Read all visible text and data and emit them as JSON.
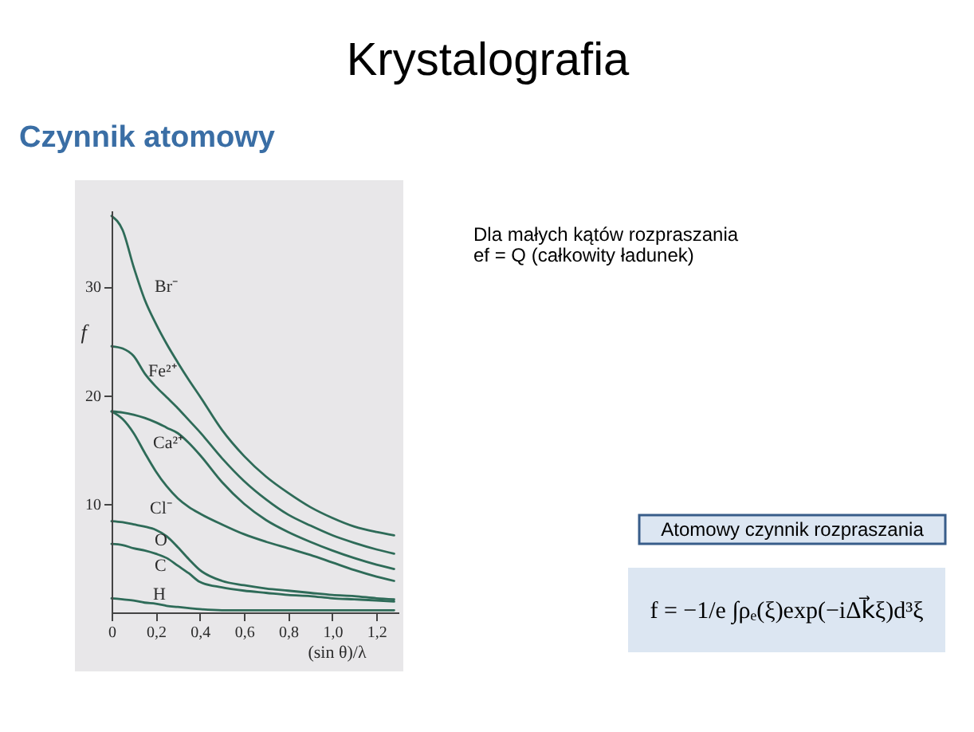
{
  "chart_data": {
    "type": "line",
    "title": "Krystalografia",
    "subtitle": "Czynnik atomowy",
    "xlabel": "(sin θ)/λ",
    "ylabel": "f",
    "x": [
      0,
      0.05,
      0.1,
      0.15,
      0.2,
      0.25,
      0.3,
      0.35,
      0.4,
      0.5,
      0.6,
      0.7,
      0.8,
      0.9,
      1.0,
      1.1,
      1.2,
      1.28
    ],
    "series": [
      {
        "name": "Br⁻",
        "color": "#2e6b58",
        "values": [
          36.5,
          35.2,
          31.8,
          28.8,
          26.6,
          24.7,
          23.0,
          21.4,
          19.9,
          16.8,
          14.4,
          12.5,
          11.0,
          9.7,
          8.7,
          7.9,
          7.4,
          7.1
        ]
      },
      {
        "name": "Fe²⁺",
        "color": "#2e6b58",
        "values": [
          24.5,
          24.3,
          23.6,
          22.0,
          20.8,
          19.8,
          18.8,
          17.7,
          16.6,
          14.2,
          12.1,
          10.4,
          9.0,
          8.0,
          7.1,
          6.4,
          5.8,
          5.4
        ]
      },
      {
        "name": "Ca²⁺",
        "color": "#2e6b58",
        "values": [
          18.5,
          18.4,
          18.2,
          17.9,
          17.5,
          17.0,
          16.5,
          15.6,
          14.5,
          12.0,
          10.0,
          8.5,
          7.4,
          6.5,
          5.7,
          5.0,
          4.4,
          4.0
        ]
      },
      {
        "name": "Cl⁻",
        "color": "#2e6b58",
        "values": [
          18.5,
          17.8,
          16.5,
          14.7,
          13.0,
          11.6,
          10.5,
          9.7,
          9.1,
          8.1,
          7.2,
          6.5,
          5.9,
          5.3,
          4.6,
          3.9,
          3.3,
          2.9
        ]
      },
      {
        "name": "O",
        "color": "#2e6b58",
        "values": [
          8.4,
          8.3,
          8.1,
          7.9,
          7.6,
          7.0,
          6.0,
          4.9,
          3.9,
          2.9,
          2.5,
          2.2,
          2.0,
          1.8,
          1.6,
          1.5,
          1.3,
          1.2
        ]
      },
      {
        "name": "C",
        "color": "#2e6b58",
        "values": [
          6.3,
          6.2,
          5.9,
          5.7,
          5.4,
          5.0,
          4.3,
          3.6,
          2.8,
          2.3,
          2.0,
          1.8,
          1.6,
          1.5,
          1.3,
          1.2,
          1.1,
          1.0
        ]
      },
      {
        "name": "H",
        "color": "#2e6b58",
        "values": [
          1.3,
          1.2,
          1.1,
          0.9,
          0.8,
          0.6,
          0.5,
          0.4,
          0.3,
          0.2,
          0.2,
          0.2,
          0.2,
          0.2,
          0.2,
          0.2,
          0.2,
          0.2
        ]
      }
    ],
    "xlim": [
      0,
      1.3
    ],
    "ylim": [
      0,
      37
    ],
    "xticks": [
      0,
      {
        "value": 0.2,
        "label": "0,2"
      },
      {
        "value": 0.4,
        "label": "0,4"
      },
      {
        "value": 0.6,
        "label": "0,6"
      },
      {
        "value": 0.8,
        "label": "0,8"
      },
      {
        "value": 1.0,
        "label": "1,0"
      },
      {
        "value": 1.2,
        "label": "1,2"
      }
    ],
    "yticks": [
      10,
      20,
      30
    ],
    "grid": false,
    "annotations": [
      "Dla małych kątów rozpraszania",
      "ef = Q (całkowity ładunek)",
      "Atomowy czynnik rozpraszania",
      "f = −1/e ∫ρₑ(ξ)exp(−iΔk⃗ξ)d³ξ"
    ]
  }
}
